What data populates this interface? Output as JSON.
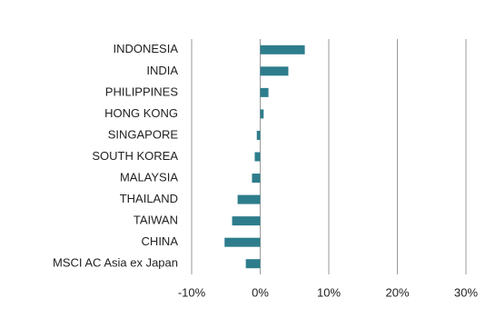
{
  "chart_data": {
    "type": "bar",
    "orientation": "horizontal",
    "categories": [
      "INDONESIA",
      "INDIA",
      "PHILIPPINES",
      "HONG KONG",
      "SINGAPORE",
      "SOUTH KOREA",
      "MALAYSIA",
      "THAILAND",
      "TAIWAN",
      "CHINA",
      "MSCI AC Asia ex Japan"
    ],
    "values": [
      6.5,
      4.1,
      1.2,
      0.5,
      -0.5,
      -0.8,
      -1.2,
      -3.3,
      -4.1,
      -5.2,
      -2.1
    ],
    "color": "#2e7d8c",
    "xlim": [
      -10,
      30
    ],
    "xticks": [
      {
        "value": -10,
        "label": "-10%"
      },
      {
        "value": 0,
        "label": "0%"
      },
      {
        "value": 10,
        "label": "10%"
      },
      {
        "value": 20,
        "label": "20%"
      },
      {
        "value": 30,
        "label": "30%"
      }
    ],
    "grid": true
  }
}
